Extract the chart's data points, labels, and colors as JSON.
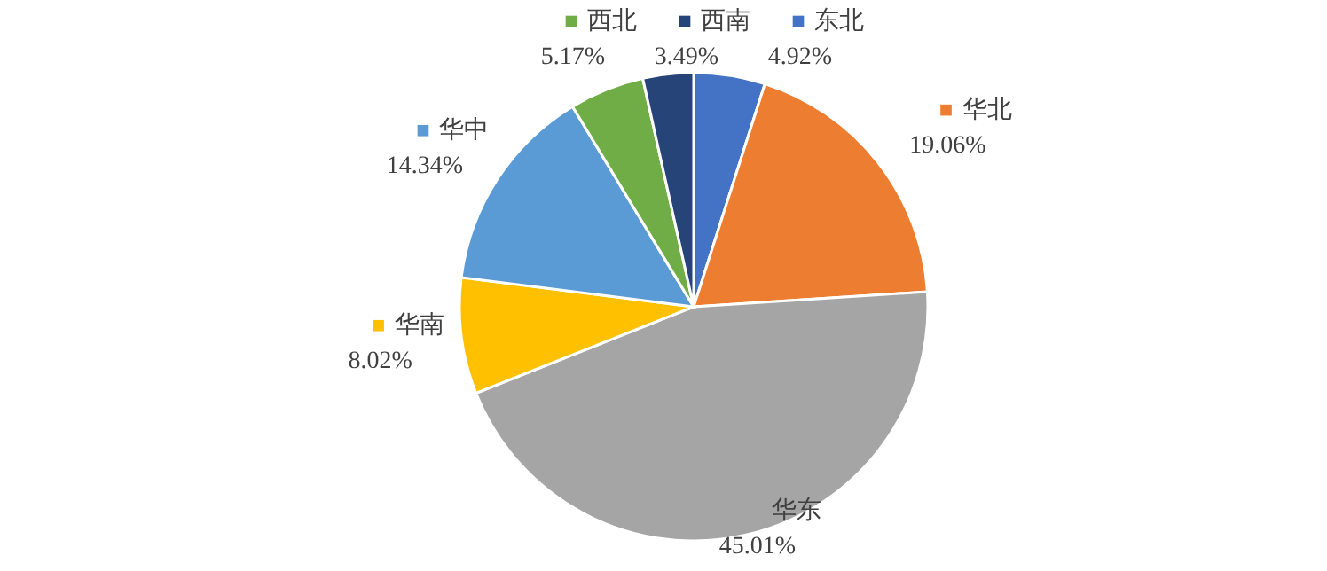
{
  "chart_data": {
    "type": "pie",
    "categories": [
      "东北",
      "华北",
      "华东",
      "华南",
      "华中",
      "西北",
      "西南"
    ],
    "values": [
      4.92,
      19.06,
      45.01,
      8.02,
      14.34,
      5.17,
      3.49
    ],
    "value_labels": [
      "4.92%",
      "19.06%",
      "45.01%",
      "8.02%",
      "14.34%",
      "5.17%",
      "3.49%"
    ],
    "legend": "top",
    "colors": [
      "#4472c4",
      "#ed7d31",
      "#a5a5a5",
      "#ffc000",
      "#5b9bd5",
      "#70ad47",
      "#264478"
    ]
  }
}
